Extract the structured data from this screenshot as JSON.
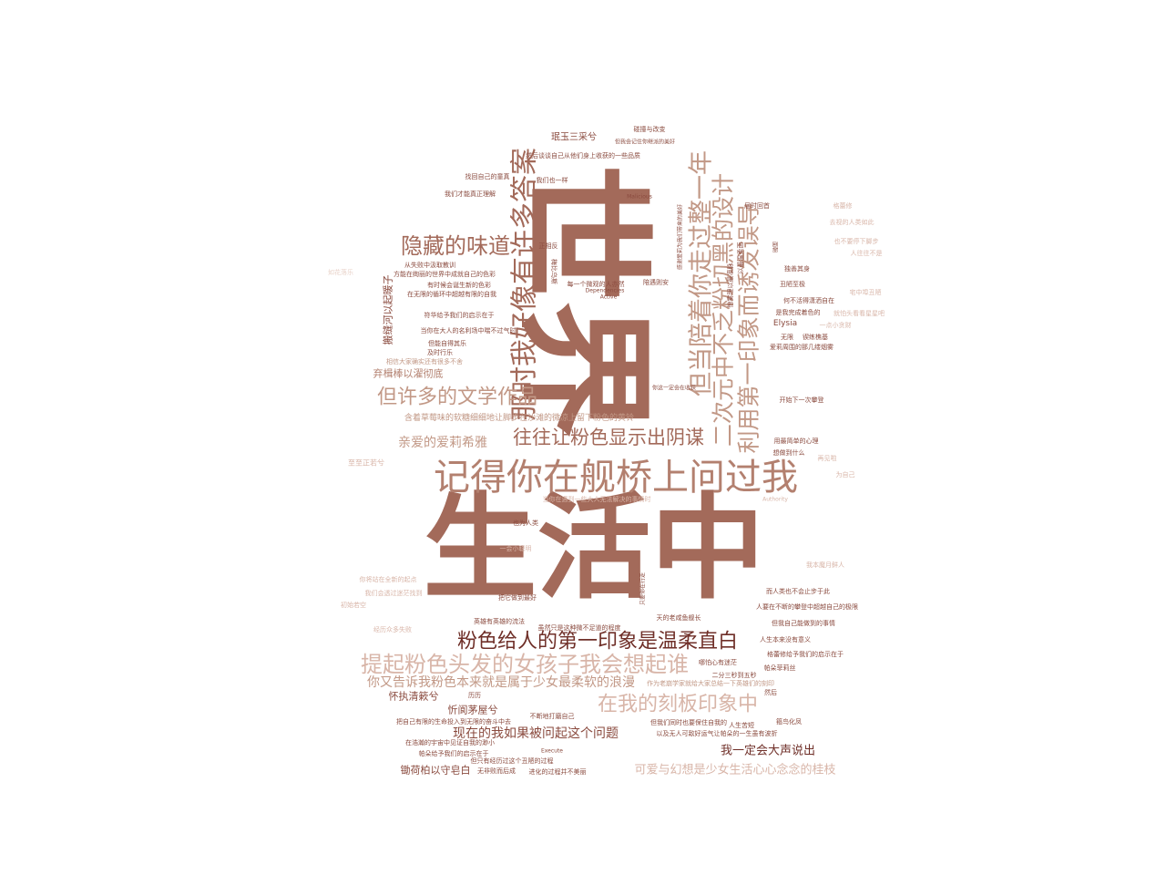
{
  "words": [
    {
      "text": "世界",
      "color": "#a36a5a"
    },
    {
      "text": "生活中",
      "color": "#a36a5a"
    },
    {
      "text": "记得你在舰桥上问过我",
      "color": "#b3806f"
    },
    {
      "text": "那时我好像有许多答案",
      "color": "#a36a5a"
    },
    {
      "text": "但当陪着你走过整一年",
      "color": "#c29886"
    },
    {
      "text": "二次元中不乏粉切黑的设计",
      "color": "#c29886"
    },
    {
      "text": "利用第一印象而诱发误导",
      "color": "#c29886"
    },
    {
      "text": "隐藏的味道",
      "color": "#a36a5a"
    },
    {
      "text": "但许多的文学作品",
      "color": "#c29886"
    },
    {
      "text": "往往让粉色显示出阴谋",
      "color": "#a36a5a"
    },
    {
      "text": "粉色给人的第一印象是温柔直白",
      "color": "#6f2f28"
    },
    {
      "text": "提起粉色头发的女孩子我会想起谁",
      "color": "#d8b5a8"
    },
    {
      "text": "在我的刻板印象中",
      "color": "#d8b5a8"
    },
    {
      "text": "你又告诉我粉色本来就是属于少女最柔软的浪漫",
      "color": "#c29886"
    },
    {
      "text": "亲爱的爱莉希雅",
      "color": "#c29886"
    },
    {
      "text": "现在的我如果被问起这个问题",
      "color": "#8a4a3e"
    },
    {
      "text": "我一定会大声说出",
      "color": "#6f2f28"
    },
    {
      "text": "可爱与幻想是少女生活心心念念的桂枝",
      "color": "#d8b5a8"
    },
    {
      "text": "含着草莓味的软糖细细地让脚步在沙滩的微凉上留下粉色的黄铃",
      "color": "#c29886"
    },
    {
      "text": "弃楫棒以濯彻底",
      "color": "#b3806f"
    },
    {
      "text": "搬缝河以起暖子",
      "color": "#8a4a3e"
    },
    {
      "text": "怀执清簌兮",
      "color": "#8a4a3e"
    },
    {
      "text": "忻阆茅屋兮",
      "color": "#8a4a3e"
    },
    {
      "text": "锄荷柏以守皂白",
      "color": "#8a4a3e"
    },
    {
      "text": "珉玉三采兮",
      "color": "#8a4a3e"
    },
    {
      "text": "然后谈谈自己从他们身上收获的一些品质",
      "color": "#8a4a3e"
    },
    {
      "text": "找回自己的童真",
      "color": "#8a4a3e"
    },
    {
      "text": "我们才能真正理解",
      "color": "#8a4a3e"
    },
    {
      "text": "从失败中汲取教训",
      "color": "#8a4a3e"
    },
    {
      "text": "方能在绚丽的世界中成就自己的色彩",
      "color": "#8a4a3e"
    },
    {
      "text": "有时候会诞生新的色彩",
      "color": "#8a4a3e"
    },
    {
      "text": "在无限的循环中超越有限的自我",
      "color": "#8a4a3e"
    },
    {
      "text": "符华给予我们的启示在于",
      "color": "#8a4a3e"
    },
    {
      "text": "当你在大人的名利场中喘不过气时",
      "color": "#8a4a3e"
    },
    {
      "text": "但能自得其乐",
      "color": "#8a4a3e"
    },
    {
      "text": "及时行乐",
      "color": "#8a4a3e"
    },
    {
      "text": "相信大家确实还有很多不舍",
      "color": "#c29886"
    },
    {
      "text": "碰撞与改变",
      "color": "#8a4a3e"
    },
    {
      "text": "但我会记住你继派的美好",
      "color": "#8a4a3e"
    },
    {
      "text": "我们也一样",
      "color": "#8a4a3e"
    },
    {
      "text": "正相反",
      "color": "#8a4a3e"
    },
    {
      "text": "梅比乌斯",
      "color": "#8a4a3e"
    },
    {
      "text": "陪遇则安",
      "color": "#8a4a3e"
    },
    {
      "text": "每一个微观的人亦然",
      "color": "#8a4a3e"
    },
    {
      "text": "你这一定会在收获",
      "color": "#8a4a3e"
    },
    {
      "text": "感谢爱莉为我们带来的美好",
      "color": "#8a4a3e"
    },
    {
      "text": "以最温柔面",
      "color": "#8a4a3e"
    },
    {
      "text": "惊雾理以最凛脉",
      "color": "#8a4a3e"
    },
    {
      "text": "届时回首",
      "color": "#8a4a3e"
    },
    {
      "text": "格蕾修",
      "color": "#d8b5a8"
    },
    {
      "text": "面朝",
      "color": "#8a4a3e"
    },
    {
      "text": "丑陋至极",
      "color": "#8a4a3e"
    },
    {
      "text": "独善其身",
      "color": "#8a4a3e"
    },
    {
      "text": "何不活得潇洒自在",
      "color": "#8a4a3e"
    },
    {
      "text": "是我完成着色的",
      "color": "#8a4a3e"
    },
    {
      "text": "Elysia",
      "color": "#8a4a3e"
    },
    {
      "text": "无限",
      "color": "#8a4a3e"
    },
    {
      "text": "锲练樵基",
      "color": "#8a4a3e"
    },
    {
      "text": "爱莉周围的那几缕烟雾",
      "color": "#8a4a3e"
    },
    {
      "text": "一点小贪财",
      "color": "#d8b5a8"
    },
    {
      "text": "就怕头看看星星吧",
      "color": "#d8b5a8"
    },
    {
      "text": "宅中埠丑陋",
      "color": "#d8b5a8"
    },
    {
      "text": "人往往不是",
      "color": "#d8b5a8"
    },
    {
      "text": "也不要停下脚步",
      "color": "#d8b5a8"
    },
    {
      "text": "去视的人类如此",
      "color": "#d8b5a8"
    },
    {
      "text": "开始下一次攀登",
      "color": "#8a4a3e"
    },
    {
      "text": "用最简单的心理",
      "color": "#8a4a3e"
    },
    {
      "text": "想做到什么",
      "color": "#8a4a3e"
    },
    {
      "text": "再见啦",
      "color": "#d8b5a8"
    },
    {
      "text": "为自己",
      "color": "#d8b5a8"
    },
    {
      "text": "人要在不断的攀登中超越自己的极限",
      "color": "#8a4a3e"
    },
    {
      "text": "但我自己能做到的事情",
      "color": "#8a4a3e"
    },
    {
      "text": "人生本来没有意义",
      "color": "#8a4a3e"
    },
    {
      "text": "格蕾修给予我们的启示在于",
      "color": "#8a4a3e"
    },
    {
      "text": "帕朵菲莉丝",
      "color": "#8a4a3e"
    },
    {
      "text": "哪怕心有迷茫",
      "color": "#8a4a3e"
    },
    {
      "text": "二分三秒到五秒",
      "color": "#8a4a3e"
    },
    {
      "text": "然后",
      "color": "#8a4a3e"
    },
    {
      "text": "人生苦短",
      "color": "#8a4a3e"
    },
    {
      "text": "箍鸟化凤",
      "color": "#8a4a3e"
    },
    {
      "text": "以及无人可敌好运气让帕朵的一生虽有波折",
      "color": "#8a4a3e"
    },
    {
      "text": "但我们同时也要保住自我的",
      "color": "#8a4a3e"
    },
    {
      "text": "天的老咸鱼舰长",
      "color": "#8a4a3e"
    },
    {
      "text": "英雄有英雄的流法",
      "color": "#8a4a3e"
    },
    {
      "text": "虽然只是这种微不足道的程度",
      "color": "#8a4a3e"
    },
    {
      "text": "把它做到最好",
      "color": "#8a4a3e"
    },
    {
      "text": "也为人类",
      "color": "#8a4a3e"
    },
    {
      "text": "历历",
      "color": "#8a4a3e"
    },
    {
      "text": "把自己有限的生命投入到无限的奋斗中去",
      "color": "#8a4a3e"
    },
    {
      "text": "不断地打磨自己",
      "color": "#8a4a3e"
    },
    {
      "text": "在浩瀚的宇宙中见证自我的渺小",
      "color": "#8a4a3e"
    },
    {
      "text": "帕朵给予我们的启示在于",
      "color": "#8a4a3e"
    },
    {
      "text": "但只有经历过这个丑陋的过程",
      "color": "#8a4a3e"
    },
    {
      "text": "无非败而后成",
      "color": "#8a4a3e"
    },
    {
      "text": "进化的过程并不美丽",
      "color": "#8a4a3e"
    },
    {
      "text": "作为老崩学家就给大家总结一下英雄们的刻印",
      "color": "#c29886"
    },
    {
      "text": "当你在遇到一些大人无法解决的事情时",
      "color": "#d8b5a8"
    },
    {
      "text": "你将站在全新的起点",
      "color": "#d8b5a8"
    },
    {
      "text": "我们会透过迷茫找到",
      "color": "#d8b5a8"
    },
    {
      "text": "经历众多失败",
      "color": "#d8b5a8"
    },
    {
      "text": "初始若空",
      "color": "#d8b5a8"
    },
    {
      "text": "至至正若兮",
      "color": "#d8b5a8"
    },
    {
      "text": "如花落乐",
      "color": "#e8d2c8"
    },
    {
      "text": "Malicious",
      "color": "#8a4a3e"
    },
    {
      "text": "Active",
      "color": "#8a4a3e"
    },
    {
      "text": "Dependencies",
      "color": "#8a4a3e"
    },
    {
      "text": "Execute",
      "color": "#8a4a3e"
    },
    {
      "text": "Authority",
      "color": "#d8b5a8"
    },
    {
      "text": "一会小聪明",
      "color": "#d8b5a8"
    },
    {
      "text": "而人类也不会止步于此",
      "color": "#8a4a3e"
    },
    {
      "text": "只要你在行走",
      "color": "#8a4a3e"
    },
    {
      "text": "我本魔月鲜人",
      "color": "#d8b5a8"
    }
  ]
}
